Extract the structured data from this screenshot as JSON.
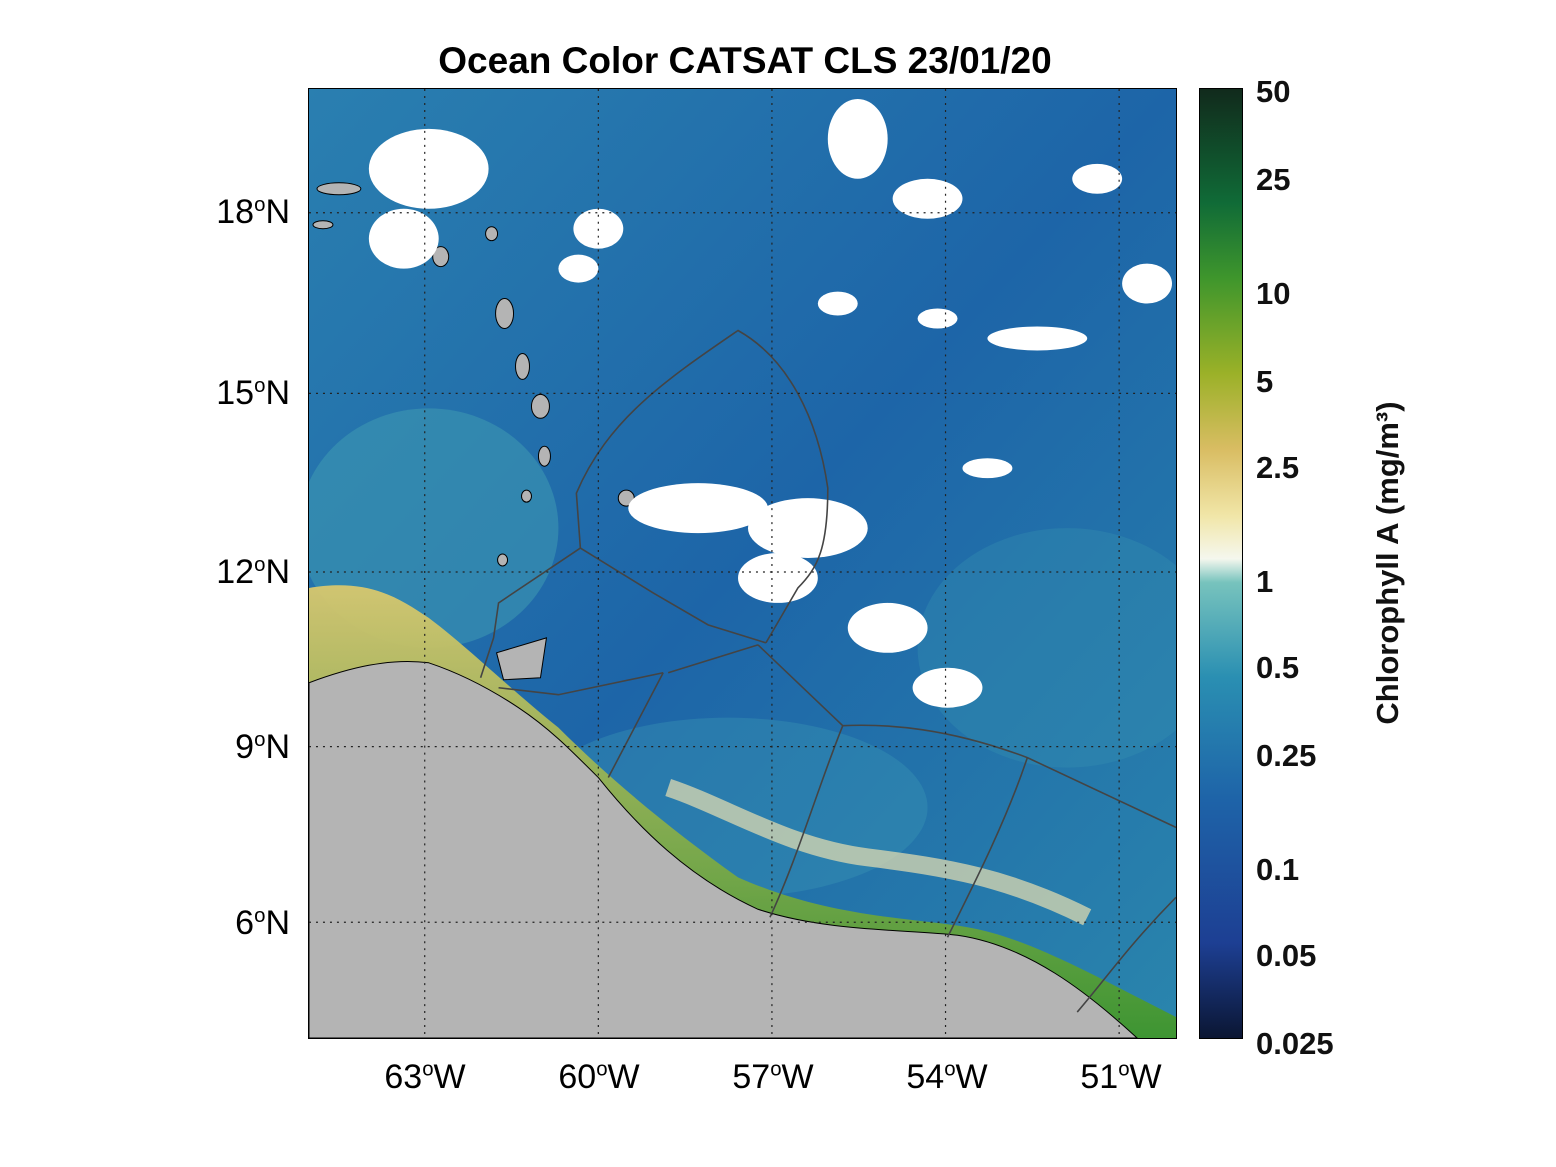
{
  "title": "Ocean Color CATSAT CLS 23/01/20",
  "colorbar": {
    "label": "Chlorophyll A (mg/m³)",
    "ticks": [
      "50",
      "25",
      "10",
      "5",
      "2.5",
      "1",
      "0.5",
      "0.25",
      "0.1",
      "0.05",
      "0.025"
    ],
    "scale": "log"
  },
  "axes": {
    "latitude_ticks": [
      {
        "deg": "18",
        "unit": "o",
        "hemi": "N"
      },
      {
        "deg": "15",
        "unit": "o",
        "hemi": "N"
      },
      {
        "deg": "12",
        "unit": "o",
        "hemi": "N"
      },
      {
        "deg": "9",
        "unit": "o",
        "hemi": "N"
      },
      {
        "deg": "6",
        "unit": "o",
        "hemi": "N"
      }
    ],
    "longitude_ticks": [
      {
        "deg": "63",
        "unit": "o",
        "hemi": "W"
      },
      {
        "deg": "60",
        "unit": "o",
        "hemi": "W"
      },
      {
        "deg": "57",
        "unit": "o",
        "hemi": "W"
      },
      {
        "deg": "54",
        "unit": "o",
        "hemi": "W"
      },
      {
        "deg": "51",
        "unit": "o",
        "hemi": "W"
      }
    ],
    "gridlines": true
  },
  "colors": {
    "ocean": "#1f6fae",
    "land": "#b4b4b4",
    "coastal_high_chl": "#3f962c",
    "clouds": "#ffffff",
    "boundaries": "#444444"
  }
}
